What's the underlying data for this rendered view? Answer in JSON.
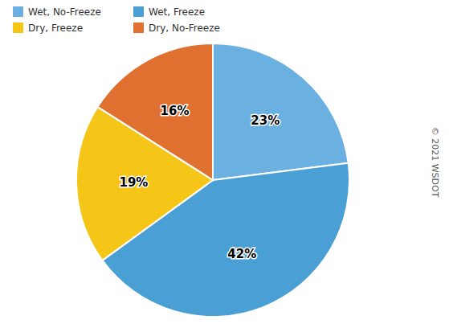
{
  "chart_data": {
    "type": "pie",
    "categories": [
      "Wet, No-Freeze",
      "Wet, Freeze",
      "Dry, Freeze",
      "Dry, No-Freeze"
    ],
    "values": [
      23,
      42,
      19,
      16
    ],
    "value_labels": [
      "23%",
      "42%",
      "19%",
      "16%"
    ],
    "colors": [
      "#6ab0e0",
      "#4a9fd4",
      "#f5c518",
      "#e07030"
    ],
    "data_labels": true,
    "legend": "upper left",
    "annotations": [
      "© 2021 WSDOT"
    ]
  }
}
